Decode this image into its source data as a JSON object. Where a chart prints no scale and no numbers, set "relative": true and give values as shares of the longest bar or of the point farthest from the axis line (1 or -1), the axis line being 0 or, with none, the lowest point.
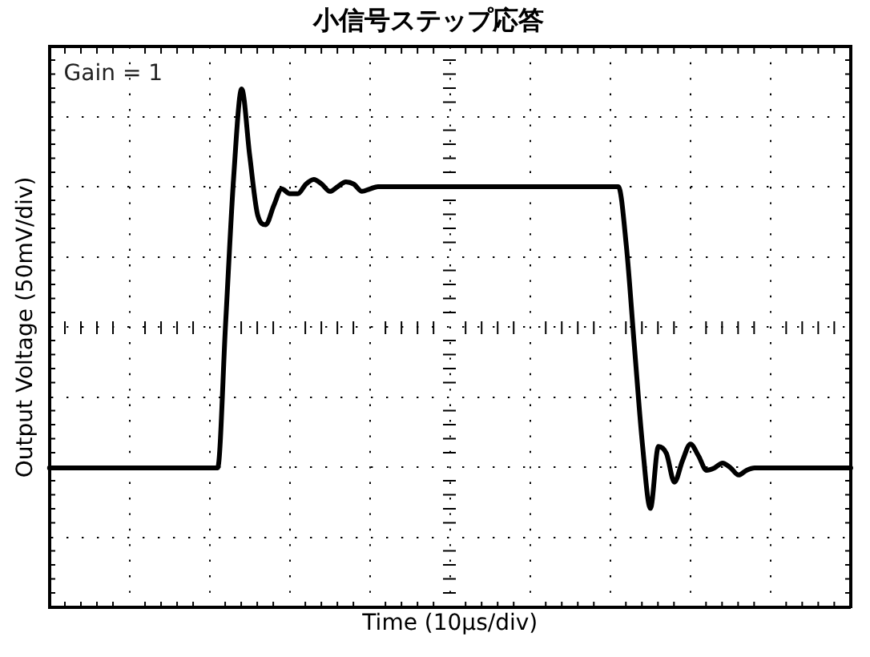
{
  "chart_data": {
    "type": "line",
    "title": "小信号ステップ応答",
    "xlabel": "Time (10µs/div)",
    "ylabel": "Output Voltage (50mV/div)",
    "annotations": [
      "Gain = 1"
    ],
    "relative": true,
    "grid": true,
    "legend": false,
    "marker": "none",
    "line_style": "solid",
    "categories": [
      null,
      null,
      null,
      null,
      null,
      null,
      null,
      null,
      null,
      null,
      null,
      null,
      null,
      null,
      null,
      null,
      null,
      null,
      null,
      null,
      null,
      null,
      null,
      null,
      null,
      null,
      null,
      null,
      null,
      null,
      null,
      null,
      null,
      null,
      null,
      null,
      null,
      null,
      null,
      null,
      null,
      null,
      null,
      null,
      null,
      null,
      null,
      null,
      null,
      null,
      null,
      null,
      null,
      null,
      null,
      null,
      null,
      null,
      null,
      null,
      null,
      null,
      null,
      null,
      null,
      null,
      null,
      null,
      null,
      null,
      null,
      null,
      null,
      null,
      null,
      null,
      null,
      null,
      null,
      null,
      null,
      null,
      null,
      null,
      null,
      null,
      null,
      null,
      null,
      null,
      null,
      null,
      null,
      null,
      null,
      null,
      null,
      null,
      null,
      null,
      null
    ],
    "series": [
      {
        "color": "#000000",
        "values": [
          -0.59,
          -0.59,
          -0.59,
          -0.59,
          -0.59,
          -0.59,
          -0.59,
          -0.59,
          -0.59,
          -0.59,
          -0.59,
          -0.59,
          -0.59,
          -0.59,
          -0.59,
          -0.59,
          -0.59,
          -0.59,
          -0.59,
          -0.59,
          -0.59,
          -0.59,
          0.02,
          0.63,
          1,
          0.72,
          0.47,
          0.43,
          0.51,
          0.58,
          0.56,
          0.56,
          0.6,
          0.62,
          0.6,
          0.57,
          0.59,
          0.61,
          0.6,
          0.57,
          0.58,
          0.59,
          0.59,
          0.59,
          0.59,
          0.59,
          0.59,
          0.59,
          0.59,
          0.59,
          0.59,
          0.59,
          0.59,
          0.59,
          0.59,
          0.59,
          0.59,
          0.59,
          0.59,
          0.59,
          0.59,
          0.59,
          0.59,
          0.59,
          0.59,
          0.59,
          0.59,
          0.59,
          0.59,
          0.59,
          0.59,
          0.59,
          0.34,
          -0.08,
          -0.49,
          -0.76,
          -0.5,
          -0.53,
          -0.65,
          -0.56,
          -0.49,
          -0.54,
          -0.6,
          -0.59,
          -0.57,
          -0.59,
          -0.62,
          -0.6,
          -0.59,
          -0.59,
          -0.59,
          -0.59,
          -0.59,
          -0.59,
          -0.59,
          -0.59,
          -0.59,
          -0.59,
          -0.59,
          -0.59,
          -0.59
        ]
      }
    ]
  }
}
